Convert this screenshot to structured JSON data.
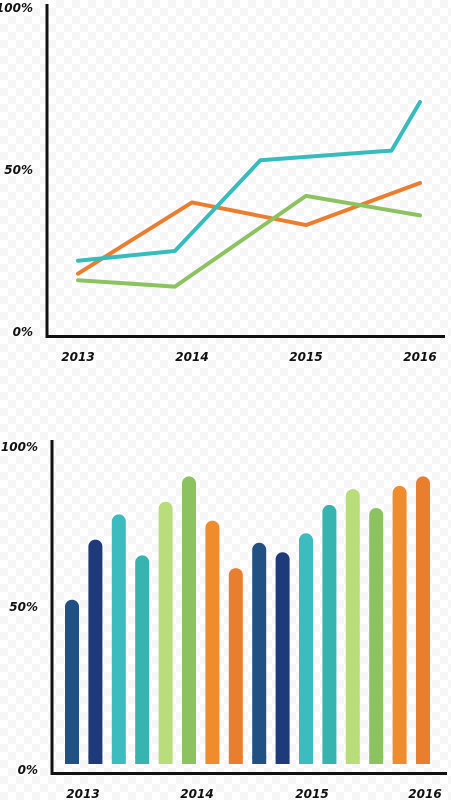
{
  "chart_data": [
    {
      "type": "line",
      "x": [
        "2013",
        "2014",
        "2015",
        "2016"
      ],
      "ylim": [
        0,
        100
      ],
      "y_ticks": [
        "0%",
        "50%",
        "100%"
      ],
      "grid": false,
      "series": [
        {
          "color": "#e87e2e",
          "points": [
            [
              2013.0,
              18
            ],
            [
              2014.0,
              40
            ],
            [
              2015.0,
              33
            ],
            [
              2016.0,
              46
            ]
          ]
        },
        {
          "color": "#36bcbc",
          "points": [
            [
              2013.0,
              22
            ],
            [
              2013.85,
              25
            ],
            [
              2014.6,
              53
            ],
            [
              2015.75,
              56
            ],
            [
              2016.0,
              71
            ]
          ]
        },
        {
          "color": "#8cc360",
          "points": [
            [
              2013.0,
              16
            ],
            [
              2013.85,
              14
            ],
            [
              2015.0,
              42
            ],
            [
              2016.0,
              36
            ]
          ]
        }
      ]
    },
    {
      "type": "bar",
      "x_ticks": [
        "2013",
        "2014",
        "2015",
        "2016"
      ],
      "ylim": [
        0,
        100
      ],
      "y_ticks": [
        "0%",
        "50%",
        "100%"
      ],
      "grid": false,
      "values": [
        52,
        71,
        79,
        66,
        83,
        91,
        77,
        62,
        70,
        67,
        73,
        82,
        87,
        81,
        88,
        91
      ],
      "colors": [
        "#215183",
        "#1e3a7a",
        "#3cbcbf",
        "#37b3b0",
        "#b8dd7a",
        "#8cc360",
        "#ee8c2e",
        "#e87e2e",
        "#215183",
        "#1e3a7a",
        "#3cbcbf",
        "#37b3b0",
        "#b8dd7a",
        "#8cc360",
        "#ee8c2e",
        "#e87e2e"
      ]
    }
  ]
}
